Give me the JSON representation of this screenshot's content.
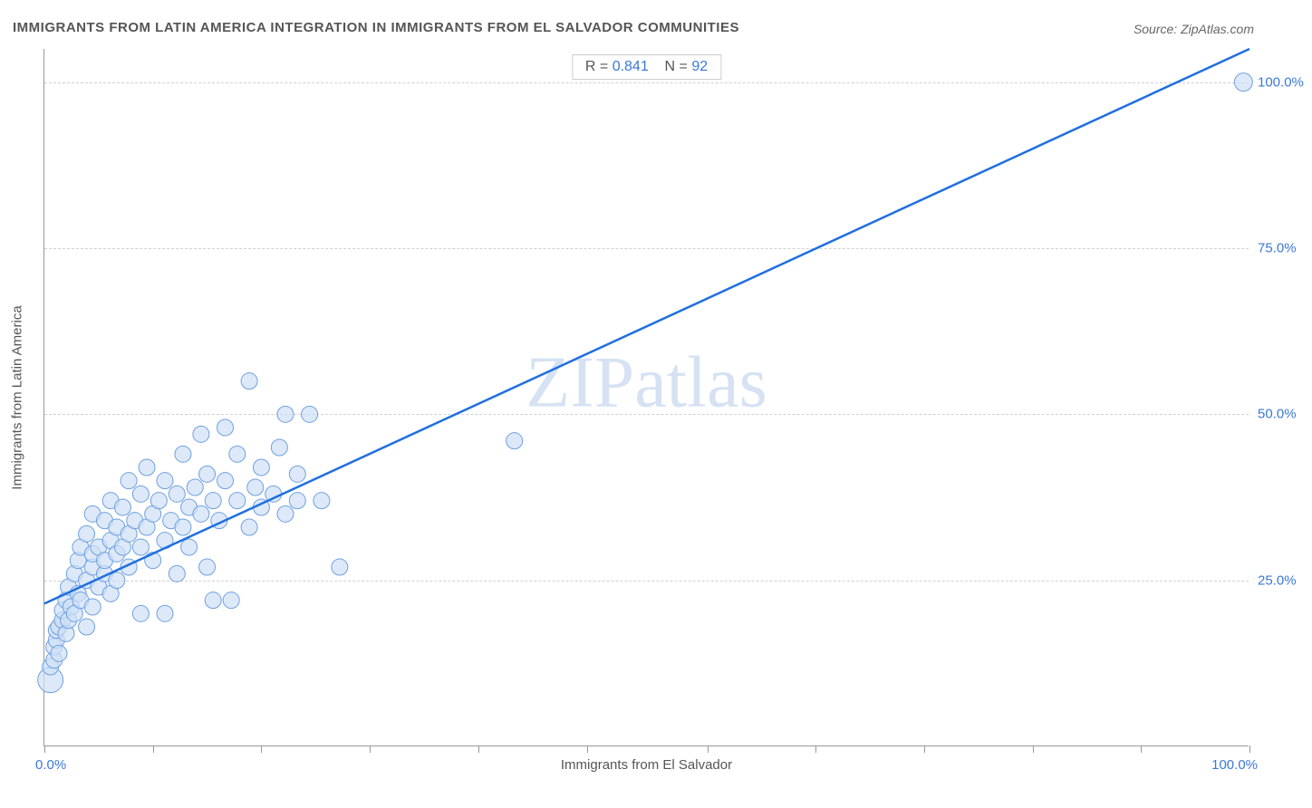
{
  "title": "IMMIGRANTS FROM LATIN AMERICA INTEGRATION IN IMMIGRANTS FROM EL SALVADOR COMMUNITIES",
  "source": "Source: ZipAtlas.com",
  "watermark_bold": "ZIP",
  "watermark_thin": "atlas",
  "chart": {
    "type": "scatter",
    "x_label": "Immigrants from El Salvador",
    "y_label": "Immigrants from Latin America",
    "xlim": [
      0,
      100
    ],
    "ylim": [
      0,
      105
    ],
    "x_ticks": [
      0,
      9,
      18,
      27,
      36,
      45,
      55,
      64,
      73,
      82,
      91,
      100
    ],
    "y_gridlines": [
      25,
      50,
      75,
      100
    ],
    "y_tick_labels": [
      "25.0%",
      "50.0%",
      "75.0%",
      "100.0%"
    ],
    "x_first_label": "0.0%",
    "x_last_label": "100.0%",
    "stats": {
      "R_label": "R =",
      "R": "0.841",
      "N_label": "N =",
      "N": "92"
    },
    "marker": {
      "fill": "#cfe0f7",
      "stroke": "#6fa0e0",
      "stroke_width": 1,
      "default_r": 9
    },
    "trend_line": {
      "x1": 0,
      "y1": 21.5,
      "x2": 100,
      "y2": 105,
      "color": "#1f6fe0",
      "width": 2.5
    },
    "points": [
      {
        "x": 0.5,
        "y": 10,
        "r": 14
      },
      {
        "x": 0.5,
        "y": 12
      },
      {
        "x": 0.8,
        "y": 13
      },
      {
        "x": 0.8,
        "y": 15
      },
      {
        "x": 1.0,
        "y": 16
      },
      {
        "x": 1.0,
        "y": 17.5
      },
      {
        "x": 1.2,
        "y": 14
      },
      {
        "x": 1.2,
        "y": 18
      },
      {
        "x": 1.5,
        "y": 19
      },
      {
        "x": 1.5,
        "y": 20.5
      },
      {
        "x": 1.8,
        "y": 17
      },
      {
        "x": 1.8,
        "y": 22
      },
      {
        "x": 2.0,
        "y": 19
      },
      {
        "x": 2.0,
        "y": 24
      },
      {
        "x": 2.2,
        "y": 21
      },
      {
        "x": 2.5,
        "y": 20
      },
      {
        "x": 2.5,
        "y": 26
      },
      {
        "x": 2.8,
        "y": 23
      },
      {
        "x": 2.8,
        "y": 28
      },
      {
        "x": 3.0,
        "y": 22
      },
      {
        "x": 3.0,
        "y": 30
      },
      {
        "x": 3.5,
        "y": 18
      },
      {
        "x": 3.5,
        "y": 25
      },
      {
        "x": 3.5,
        "y": 32
      },
      {
        "x": 4.0,
        "y": 21
      },
      {
        "x": 4.0,
        "y": 27
      },
      {
        "x": 4.0,
        "y": 29
      },
      {
        "x": 4.0,
        "y": 35
      },
      {
        "x": 4.5,
        "y": 24
      },
      {
        "x": 4.5,
        "y": 30
      },
      {
        "x": 5.0,
        "y": 26
      },
      {
        "x": 5.0,
        "y": 28
      },
      {
        "x": 5.0,
        "y": 34
      },
      {
        "x": 5.5,
        "y": 23
      },
      {
        "x": 5.5,
        "y": 31
      },
      {
        "x": 5.5,
        "y": 37
      },
      {
        "x": 6.0,
        "y": 25
      },
      {
        "x": 6.0,
        "y": 29
      },
      {
        "x": 6.0,
        "y": 33
      },
      {
        "x": 6.5,
        "y": 30
      },
      {
        "x": 6.5,
        "y": 36
      },
      {
        "x": 7.0,
        "y": 27
      },
      {
        "x": 7.0,
        "y": 32
      },
      {
        "x": 7.0,
        "y": 40
      },
      {
        "x": 7.5,
        "y": 34
      },
      {
        "x": 8.0,
        "y": 20
      },
      {
        "x": 8.0,
        "y": 30
      },
      {
        "x": 8.0,
        "y": 38
      },
      {
        "x": 8.5,
        "y": 33
      },
      {
        "x": 8.5,
        "y": 42
      },
      {
        "x": 9.0,
        "y": 28
      },
      {
        "x": 9.0,
        "y": 35
      },
      {
        "x": 9.5,
        "y": 37
      },
      {
        "x": 10.0,
        "y": 20
      },
      {
        "x": 10.0,
        "y": 31
      },
      {
        "x": 10.0,
        "y": 40
      },
      {
        "x": 10.5,
        "y": 34
      },
      {
        "x": 11.0,
        "y": 26
      },
      {
        "x": 11.0,
        "y": 38
      },
      {
        "x": 11.5,
        "y": 33
      },
      {
        "x": 11.5,
        "y": 44
      },
      {
        "x": 12.0,
        "y": 30
      },
      {
        "x": 12.0,
        "y": 36
      },
      {
        "x": 12.5,
        "y": 39
      },
      {
        "x": 13.0,
        "y": 35
      },
      {
        "x": 13.0,
        "y": 47
      },
      {
        "x": 13.5,
        "y": 41
      },
      {
        "x": 14.0,
        "y": 22
      },
      {
        "x": 14.0,
        "y": 37
      },
      {
        "x": 14.5,
        "y": 34
      },
      {
        "x": 15.0,
        "y": 40
      },
      {
        "x": 15.0,
        "y": 48
      },
      {
        "x": 15.5,
        "y": 22
      },
      {
        "x": 16.0,
        "y": 37
      },
      {
        "x": 16.0,
        "y": 44
      },
      {
        "x": 17.0,
        "y": 33
      },
      {
        "x": 17.0,
        "y": 55
      },
      {
        "x": 17.5,
        "y": 39
      },
      {
        "x": 18.0,
        "y": 36
      },
      {
        "x": 18.0,
        "y": 42
      },
      {
        "x": 19.0,
        "y": 38
      },
      {
        "x": 19.5,
        "y": 45
      },
      {
        "x": 20.0,
        "y": 35
      },
      {
        "x": 20.0,
        "y": 50
      },
      {
        "x": 21.0,
        "y": 37
      },
      {
        "x": 21.0,
        "y": 41
      },
      {
        "x": 22.0,
        "y": 50
      },
      {
        "x": 23.0,
        "y": 37
      },
      {
        "x": 24.5,
        "y": 27
      },
      {
        "x": 39.0,
        "y": 46
      },
      {
        "x": 99.5,
        "y": 100,
        "r": 10
      },
      {
        "x": 13.5,
        "y": 27
      }
    ],
    "background_color": "#ffffff",
    "axis_color": "#999999",
    "grid_color": "#d0d0d0",
    "tick_label_color": "#3b78d8",
    "axis_label_color": "#555555",
    "title_color": "#555555"
  }
}
